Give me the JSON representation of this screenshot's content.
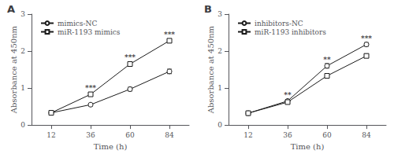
{
  "chart_data": [
    {
      "type": "line",
      "title": "A",
      "x": [
        12,
        36,
        60,
        84
      ],
      "series": [
        {
          "name": "mimics-NC",
          "color": "#1a1a1a",
          "marker": "circle",
          "values": [
            0.33,
            0.55,
            0.97,
            1.45
          ],
          "yerr": [
            0.03,
            0.04,
            0.05,
            0.06
          ]
        },
        {
          "name": "miR-1193 mimics",
          "color": "#1a1a1a",
          "marker": "square",
          "values": [
            0.33,
            0.83,
            1.65,
            2.28
          ],
          "yerr": [
            0.03,
            0.05,
            0.06,
            0.05
          ]
        }
      ],
      "annotations": [
        {
          "x": 36,
          "y": 0.88,
          "text": "***"
        },
        {
          "x": 60,
          "y": 1.71,
          "text": "***"
        },
        {
          "x": 84,
          "y": 2.33,
          "text": "***"
        }
      ],
      "xlabel": "Time (h)",
      "ylabel": "Absorbance at 450nm",
      "xlim": [
        0,
        96
      ],
      "xticks": [
        12,
        36,
        60,
        84
      ],
      "ylim": [
        0,
        3.0
      ],
      "yticks": [
        0,
        1,
        2,
        3
      ],
      "grid": false,
      "legend": "upper left"
    },
    {
      "type": "line",
      "title": "B",
      "x": [
        12,
        36,
        60,
        84
      ],
      "series": [
        {
          "name": "inhibitors-NC",
          "color": "#1a1a1a",
          "marker": "circle",
          "values": [
            0.32,
            0.65,
            1.6,
            2.18
          ],
          "yerr": [
            0.03,
            0.04,
            0.06,
            0.05
          ]
        },
        {
          "name": "miR-1193 inhibitors",
          "color": "#1a1a1a",
          "marker": "square",
          "values": [
            0.32,
            0.62,
            1.33,
            1.87
          ],
          "yerr": [
            0.03,
            0.04,
            0.06,
            0.05
          ]
        }
      ],
      "annotations": [
        {
          "x": 36,
          "y": 0.69,
          "text": "**"
        },
        {
          "x": 60,
          "y": 1.66,
          "text": "**"
        },
        {
          "x": 84,
          "y": 2.23,
          "text": "***"
        }
      ],
      "xlabel": "Time (h)",
      "ylabel": "Absorbance at 450nm",
      "xlim": [
        0,
        96
      ],
      "xticks": [
        12,
        36,
        60,
        84
      ],
      "ylim": [
        0,
        3.0
      ],
      "yticks": [
        0,
        1,
        2,
        3
      ],
      "grid": false,
      "legend": "upper left"
    }
  ]
}
